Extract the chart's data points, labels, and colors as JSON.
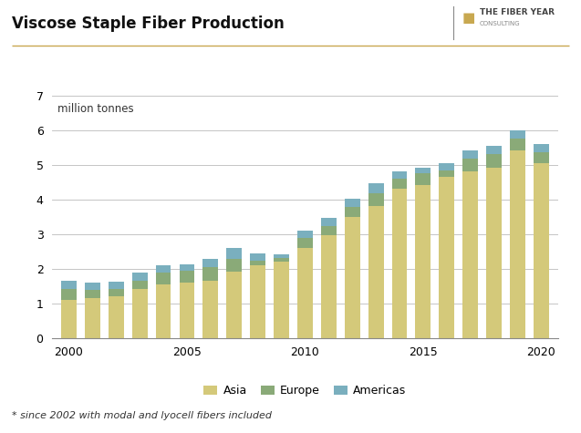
{
  "title": "Viscose Staple Fiber Production",
  "subtitle": "million tonnes",
  "footnote": "* since 2002 with modal and lyocell fibers included",
  "years": [
    2000,
    2001,
    2002,
    2003,
    2004,
    2005,
    2006,
    2007,
    2008,
    2009,
    2010,
    2011,
    2012,
    2013,
    2014,
    2015,
    2016,
    2017,
    2018,
    2019,
    2020
  ],
  "asia": [
    1.1,
    1.15,
    1.2,
    1.4,
    1.55,
    1.6,
    1.65,
    1.9,
    2.1,
    2.2,
    2.6,
    2.95,
    3.5,
    3.8,
    4.3,
    4.4,
    4.65,
    4.8,
    4.9,
    5.4,
    5.05
  ],
  "europe": [
    0.3,
    0.22,
    0.22,
    0.25,
    0.32,
    0.33,
    0.38,
    0.38,
    0.13,
    0.09,
    0.27,
    0.27,
    0.27,
    0.36,
    0.3,
    0.36,
    0.18,
    0.36,
    0.4,
    0.35,
    0.3
  ],
  "americas": [
    0.25,
    0.23,
    0.2,
    0.23,
    0.23,
    0.2,
    0.25,
    0.3,
    0.2,
    0.12,
    0.23,
    0.25,
    0.25,
    0.3,
    0.2,
    0.14,
    0.2,
    0.24,
    0.24,
    0.25,
    0.25
  ],
  "color_asia": "#d4c97a",
  "color_europe": "#8aaa78",
  "color_americas": "#7aafbe",
  "ylim": [
    0,
    7
  ],
  "yticks": [
    0,
    1,
    2,
    3,
    4,
    5,
    6,
    7
  ],
  "bar_width": 0.65,
  "background_color": "#ffffff",
  "grid_color": "#bbbbbb",
  "title_fontsize": 12,
  "axis_fontsize": 9,
  "legend_fontsize": 9,
  "footnote_fontsize": 8
}
